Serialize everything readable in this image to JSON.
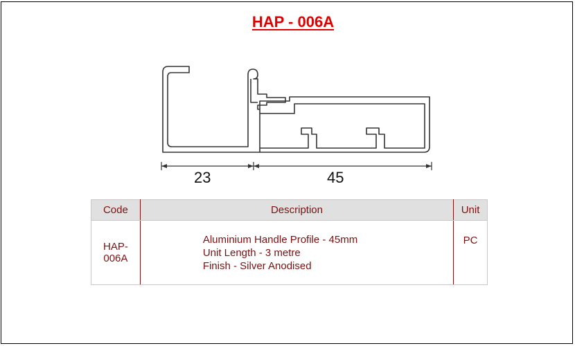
{
  "title": "HAP - 006A",
  "dimensions": {
    "left": "23",
    "right": "45"
  },
  "table": {
    "headers": {
      "code": "Code",
      "description": "Description",
      "unit": "Unit"
    },
    "row": {
      "code": "HAP- 006A",
      "description": [
        "Aluminium Handle Profile - 45mm",
        "Unit Length - 3 metre",
        "Finish - Silver Anodised"
      ],
      "unit": "PC"
    }
  },
  "colors": {
    "title": "#e00000",
    "table_text": "#7a1010",
    "header_bg": "#e0e0e0"
  }
}
